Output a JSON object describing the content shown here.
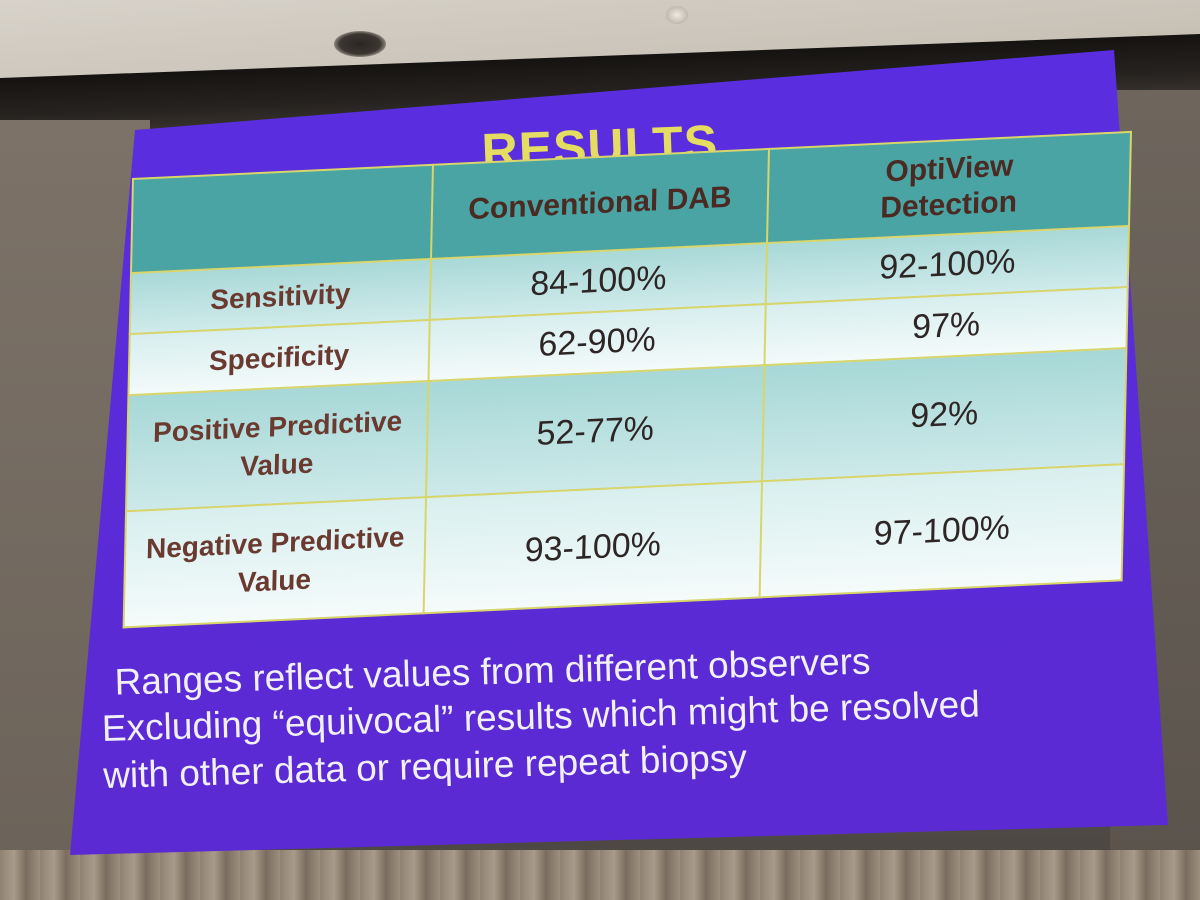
{
  "slide": {
    "title": "RESULTS",
    "colors": {
      "background": "#5a2ee0",
      "title": "#e4dd61",
      "header_fill": "#4ba4a4",
      "border": "#d8d56b",
      "row_label": "#6a3a30",
      "notes_text": "#f2f0f7"
    }
  },
  "table": {
    "columns": [
      "",
      "Conventional DAB",
      "OptiView Detection"
    ],
    "rows": [
      {
        "label": "Sensitivity",
        "conventional_dab": "84-100%",
        "optiview": "92-100%"
      },
      {
        "label": "Specificity",
        "conventional_dab": "62-90%",
        "optiview": "97%"
      },
      {
        "label": "Positive Predictive Value",
        "conventional_dab": "52-77%",
        "optiview": "92%"
      },
      {
        "label": "Negative Predictive Value",
        "conventional_dab": "93-100%",
        "optiview": "97-100%"
      }
    ]
  },
  "notes": {
    "line1": "Ranges reflect values from different observers",
    "line2": "Excluding “equivocal” results which might be resolved",
    "line3": "with other data or require repeat biopsy"
  }
}
